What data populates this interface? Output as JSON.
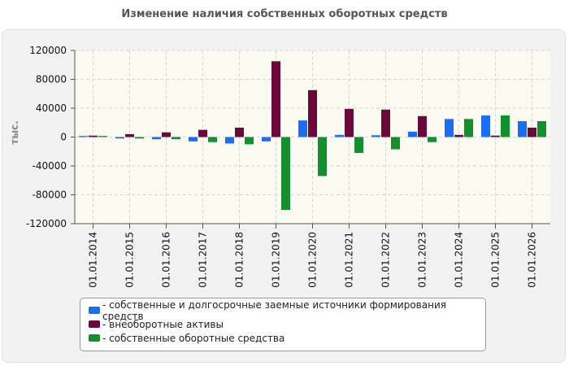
{
  "chart_data": {
    "type": "bar",
    "title": "Изменение наличия собственных оборотных средств",
    "ylabel": "тыс.",
    "xlabel": "",
    "ylim": [
      -120000,
      120000
    ],
    "yticks": [
      120000,
      80000,
      40000,
      0,
      -40000,
      -80000,
      -120000
    ],
    "ytick_labels": [
      "120000",
      "80000",
      "40000",
      "0",
      "-40000",
      "-80000",
      "-120000"
    ],
    "grid": true,
    "legend_position": "bottom",
    "categories": [
      "01.01.2014",
      "01.01.2015",
      "01.01.2016",
      "01.01.2017",
      "01.01.2018",
      "01.01.2019",
      "01.01.2020",
      "01.01.2021",
      "01.01.2022",
      "01.01.2023",
      "01.01.2024",
      "01.01.2025",
      "01.01.2026"
    ],
    "series": [
      {
        "name": "собственные и долгосрочные заемные источники формирования средств",
        "color": "#1a6ef5",
        "values": [
          1500,
          -2000,
          -3000,
          -6000,
          -9000,
          -6000,
          23000,
          3000,
          2500,
          7500,
          25000,
          30000,
          22000
        ]
      },
      {
        "name": "внеоборотные активы",
        "color": "#6b0a3a",
        "values": [
          2000,
          4000,
          6500,
          10000,
          13000,
          105000,
          65000,
          39000,
          38000,
          29000,
          3000,
          2000,
          13000
        ]
      },
      {
        "name": "собственные оборотные средства",
        "color": "#12902e",
        "values": [
          1500,
          -2000,
          -3000,
          -7000,
          -10000,
          -101000,
          -54000,
          -22000,
          -17000,
          -7000,
          25000,
          30000,
          22000
        ]
      }
    ]
  }
}
